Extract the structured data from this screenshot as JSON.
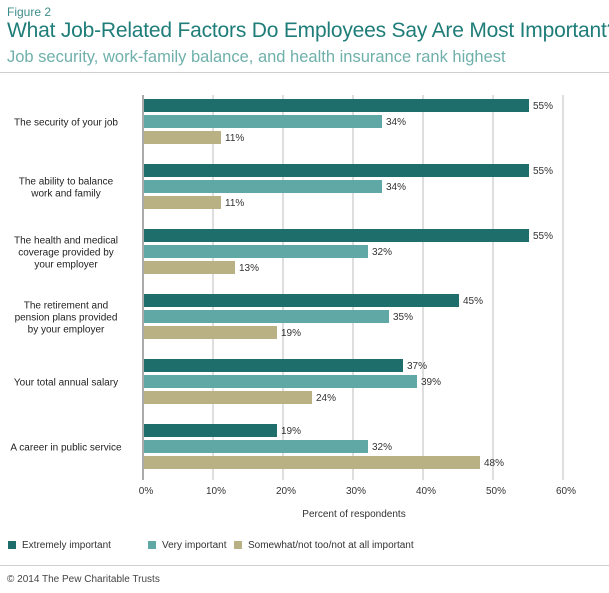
{
  "figure_label": "Figure 2",
  "title": "What Job-Related Factors Do Employees Say Are Most Important?",
  "subtitle": "Job security, work-family balance, and health insurance rank highest",
  "copyright": "© 2014 The Pew Charitable Trusts",
  "colors": {
    "extremely": "#1e6f6b",
    "very": "#5fa8a5",
    "somewhat": "#b9b083",
    "title": "#1f7d79",
    "subtitle": "#6fb0ab"
  },
  "chart_data": {
    "type": "bar",
    "orientation": "horizontal",
    "categories": [
      [
        "The security of your job"
      ],
      [
        "The ability to balance",
        "work and family"
      ],
      [
        "The health and medical",
        "coverage provided by",
        "your employer"
      ],
      [
        "The retirement and",
        "pension plans provided",
        "by your employer"
      ],
      [
        "Your total annual salary"
      ],
      [
        "A career in public service"
      ]
    ],
    "series": [
      {
        "name": "Extremely important",
        "values": [
          55,
          55,
          55,
          45,
          37,
          19
        ]
      },
      {
        "name": "Very important",
        "values": [
          34,
          34,
          32,
          35,
          39,
          32
        ]
      },
      {
        "name": "Somewhat/not too/not at all important",
        "values": [
          11,
          11,
          13,
          19,
          24,
          48
        ]
      }
    ],
    "value_suffix": "%",
    "xlabel": "Percent of respondents",
    "xlim": [
      0,
      60
    ],
    "xticks": [
      "0%",
      "10%",
      "20%",
      "30%",
      "40%",
      "50%",
      "60%"
    ],
    "grid": true,
    "legend_position": "bottom"
  }
}
